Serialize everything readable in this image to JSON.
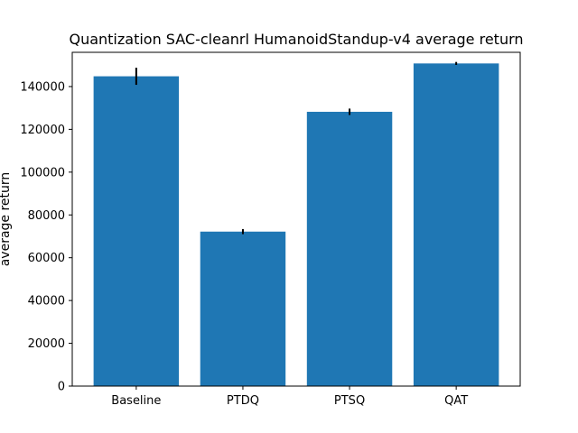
{
  "chart_data": {
    "type": "bar",
    "title": "Quantization SAC-cleanrl HumanoidStandup-v4 average return",
    "xlabel": "",
    "ylabel": "average return",
    "categories": [
      "Baseline",
      "PTDQ",
      "PTSQ",
      "QAT"
    ],
    "values": [
      144800,
      72200,
      128200,
      150800
    ],
    "error": [
      4000,
      1200,
      1500,
      700
    ],
    "ylim": [
      0,
      156000
    ],
    "yticks": [
      0,
      20000,
      40000,
      60000,
      80000,
      100000,
      120000,
      140000
    ],
    "ytick_labels": [
      "0",
      "20000",
      "40000",
      "60000",
      "80000",
      "100000",
      "120000",
      "140000"
    ],
    "grid": false,
    "legend": "none",
    "colors": {
      "bar": "#1f77b4",
      "error": "#000000",
      "axes": "#000000",
      "background": "#ffffff"
    }
  }
}
